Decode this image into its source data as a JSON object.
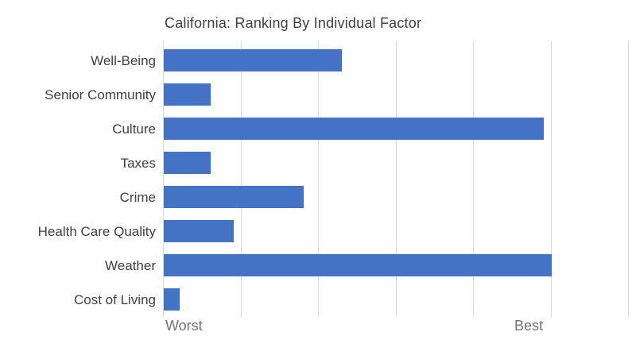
{
  "chart_data": {
    "type": "bar",
    "orientation": "horizontal",
    "title": "California: Ranking By Individual Factor",
    "categories": [
      "Well-Being",
      "Senior Community",
      "Culture",
      "Taxes",
      "Crime",
      "Health Care Quality",
      "Weather",
      "Cost of Living"
    ],
    "values": [
      23,
      6,
      49,
      6,
      18,
      9,
      50,
      2
    ],
    "xlim": [
      0,
      60
    ],
    "gridline_interval": 10,
    "grid": "vertical-only",
    "legend_position": "none",
    "axis_end_labels": {
      "min": "Worst",
      "max": "Best"
    },
    "colors": {
      "bar": "#4472C4",
      "title_text": "#404040",
      "category_text": "#404040",
      "axis_text": "#737373",
      "gridline": "#DBDBDB",
      "background": "#FFFFFF"
    }
  }
}
